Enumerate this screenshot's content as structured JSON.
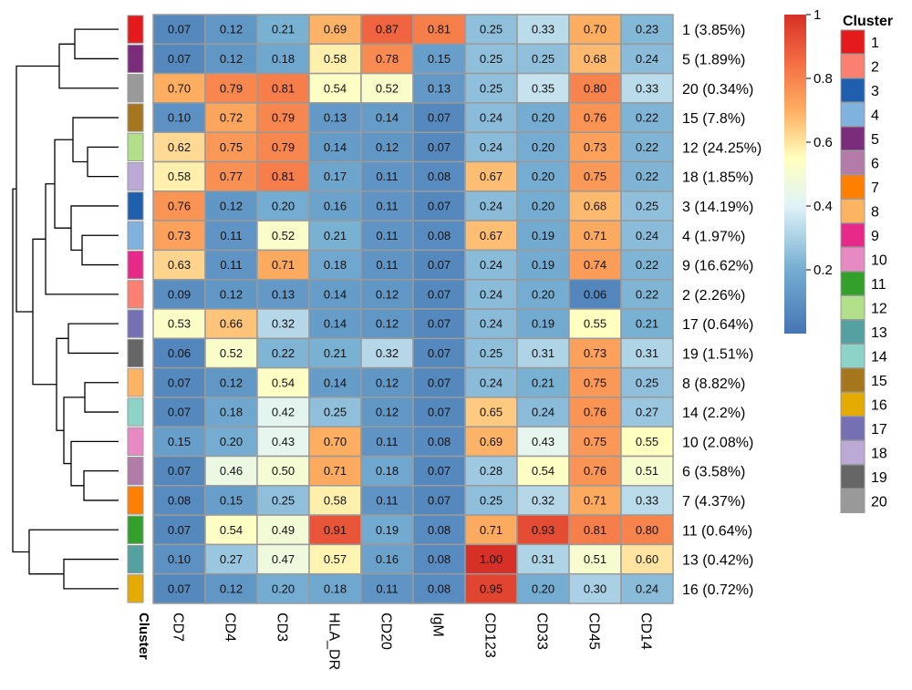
{
  "chart_data": {
    "type": "heatmap",
    "columns": [
      "CD7",
      "CD4",
      "CD3",
      "HLA_DR",
      "CD20",
      "IgM",
      "CD123",
      "CD33",
      "CD45",
      "CD14"
    ],
    "rows": [
      {
        "cluster": 1,
        "label": "1 (3.85%)",
        "values": [
          0.07,
          0.12,
          0.21,
          0.69,
          0.87,
          0.81,
          0.25,
          0.33,
          0.7,
          0.23
        ]
      },
      {
        "cluster": 5,
        "label": "5 (1.89%)",
        "values": [
          0.07,
          0.12,
          0.18,
          0.58,
          0.78,
          0.15,
          0.25,
          0.25,
          0.68,
          0.24
        ]
      },
      {
        "cluster": 20,
        "label": "20 (0.34%)",
        "values": [
          0.7,
          0.79,
          0.81,
          0.54,
          0.52,
          0.13,
          0.25,
          0.35,
          0.8,
          0.33
        ]
      },
      {
        "cluster": 15,
        "label": "15 (7.8%)",
        "values": [
          0.1,
          0.72,
          0.79,
          0.13,
          0.14,
          0.07,
          0.24,
          0.2,
          0.76,
          0.22
        ]
      },
      {
        "cluster": 12,
        "label": "12 (24.25%)",
        "values": [
          0.62,
          0.75,
          0.79,
          0.14,
          0.12,
          0.07,
          0.24,
          0.2,
          0.73,
          0.22
        ]
      },
      {
        "cluster": 18,
        "label": "18 (1.85%)",
        "values": [
          0.58,
          0.77,
          0.81,
          0.17,
          0.11,
          0.08,
          0.67,
          0.2,
          0.75,
          0.22
        ]
      },
      {
        "cluster": 3,
        "label": "3 (14.19%)",
        "values": [
          0.76,
          0.12,
          0.2,
          0.16,
          0.11,
          0.07,
          0.24,
          0.2,
          0.68,
          0.25
        ]
      },
      {
        "cluster": 4,
        "label": "4 (1.97%)",
        "values": [
          0.73,
          0.11,
          0.52,
          0.21,
          0.11,
          0.08,
          0.67,
          0.19,
          0.71,
          0.24
        ]
      },
      {
        "cluster": 9,
        "label": "9 (16.62%)",
        "values": [
          0.63,
          0.11,
          0.71,
          0.18,
          0.11,
          0.07,
          0.24,
          0.19,
          0.74,
          0.22
        ]
      },
      {
        "cluster": 2,
        "label": "2 (2.26%)",
        "values": [
          0.09,
          0.12,
          0.13,
          0.14,
          0.12,
          0.07,
          0.24,
          0.2,
          0.06,
          0.22
        ]
      },
      {
        "cluster": 17,
        "label": "17 (0.64%)",
        "values": [
          0.53,
          0.66,
          0.32,
          0.14,
          0.12,
          0.07,
          0.24,
          0.19,
          0.55,
          0.21
        ]
      },
      {
        "cluster": 19,
        "label": "19 (1.51%)",
        "values": [
          0.06,
          0.52,
          0.22,
          0.21,
          0.32,
          0.07,
          0.25,
          0.31,
          0.73,
          0.31
        ]
      },
      {
        "cluster": 8,
        "label": "8 (8.82%)",
        "values": [
          0.07,
          0.12,
          0.54,
          0.14,
          0.12,
          0.07,
          0.24,
          0.21,
          0.75,
          0.25
        ]
      },
      {
        "cluster": 14,
        "label": "14 (2.2%)",
        "values": [
          0.07,
          0.18,
          0.42,
          0.25,
          0.12,
          0.07,
          0.65,
          0.24,
          0.76,
          0.27
        ]
      },
      {
        "cluster": 10,
        "label": "10 (2.08%)",
        "values": [
          0.15,
          0.2,
          0.43,
          0.7,
          0.11,
          0.08,
          0.69,
          0.43,
          0.75,
          0.55
        ]
      },
      {
        "cluster": 6,
        "label": "6 (3.58%)",
        "values": [
          0.07,
          0.46,
          0.5,
          0.71,
          0.18,
          0.07,
          0.28,
          0.54,
          0.76,
          0.51
        ]
      },
      {
        "cluster": 7,
        "label": "7 (4.37%)",
        "values": [
          0.08,
          0.15,
          0.25,
          0.58,
          0.11,
          0.07,
          0.25,
          0.32,
          0.71,
          0.33
        ]
      },
      {
        "cluster": 11,
        "label": "11 (0.64%)",
        "values": [
          0.07,
          0.54,
          0.49,
          0.91,
          0.19,
          0.08,
          0.71,
          0.93,
          0.81,
          0.8
        ]
      },
      {
        "cluster": 13,
        "label": "13 (0.42%)",
        "values": [
          0.1,
          0.27,
          0.47,
          0.57,
          0.16,
          0.08,
          1.0,
          0.31,
          0.51,
          0.6
        ]
      },
      {
        "cluster": 16,
        "label": "16 (0.72%)",
        "values": [
          0.07,
          0.12,
          0.2,
          0.18,
          0.11,
          0.08,
          0.95,
          0.2,
          0.3,
          0.24
        ]
      }
    ],
    "annotation_title": "Cluster",
    "color_scale": {
      "range": [
        0,
        1
      ],
      "ticks": [
        "0.2",
        "0.4",
        "0.6",
        "0.8",
        "1"
      ],
      "stops": [
        {
          "v": 0.0,
          "color": "#4575b4"
        },
        {
          "v": 0.2,
          "color": "#74add1"
        },
        {
          "v": 0.4,
          "color": "#e0f3f8"
        },
        {
          "v": 0.55,
          "color": "#ffffbf"
        },
        {
          "v": 0.7,
          "color": "#fdae61"
        },
        {
          "v": 0.85,
          "color": "#f46d43"
        },
        {
          "v": 1.0,
          "color": "#d73027"
        }
      ]
    },
    "legend": {
      "title": "Cluster",
      "placement": "right",
      "items": [
        {
          "label": "1",
          "color": "#e41a1c"
        },
        {
          "label": "2",
          "color": "#fb8072"
        },
        {
          "label": "3",
          "color": "#1f5fad"
        },
        {
          "label": "4",
          "color": "#7fb2de"
        },
        {
          "label": "5",
          "color": "#7b2d7b"
        },
        {
          "label": "6",
          "color": "#b27ba8"
        },
        {
          "label": "7",
          "color": "#ff7f00"
        },
        {
          "label": "8",
          "color": "#fdb462"
        },
        {
          "label": "9",
          "color": "#e7298a"
        },
        {
          "label": "10",
          "color": "#e78ac3"
        },
        {
          "label": "11",
          "color": "#33a02c"
        },
        {
          "label": "12",
          "color": "#b2df8a"
        },
        {
          "label": "13",
          "color": "#55a0a0"
        },
        {
          "label": "14",
          "color": "#8dd3c7"
        },
        {
          "label": "15",
          "color": "#a6761d"
        },
        {
          "label": "16",
          "color": "#e6ab02"
        },
        {
          "label": "17",
          "color": "#7570b3"
        },
        {
          "label": "18",
          "color": "#bcaad6"
        },
        {
          "label": "19",
          "color": "#666666"
        },
        {
          "label": "20",
          "color": "#999999"
        }
      ]
    },
    "dendrogram": true
  }
}
